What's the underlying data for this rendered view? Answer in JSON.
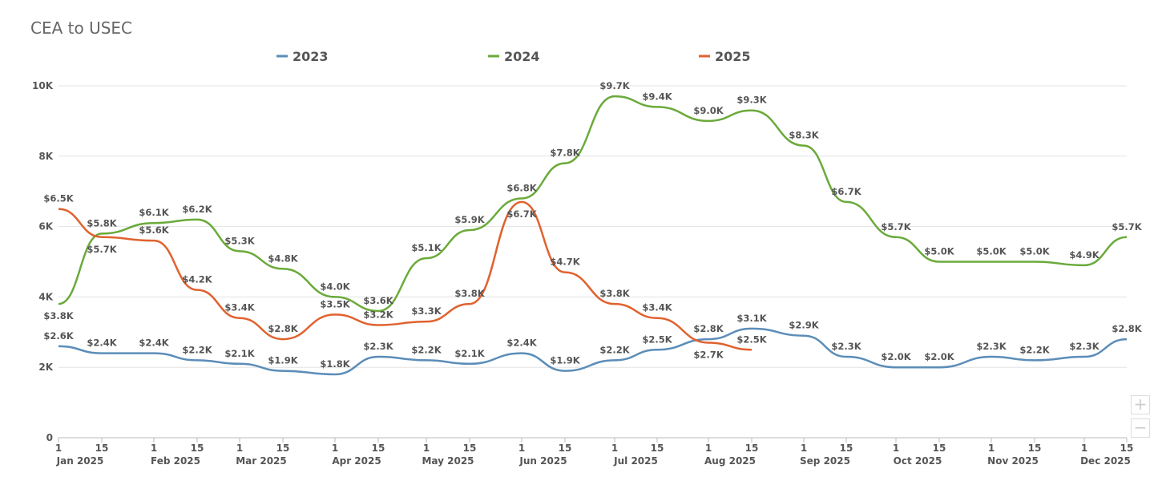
{
  "chart_data": {
    "type": "line",
    "title": "CEA to USEC",
    "x_dates": [
      "Jan 1",
      "Jan 15",
      "Feb 1",
      "Feb 15",
      "Mar 1",
      "Mar 15",
      "Apr 1",
      "Apr 15",
      "May 1",
      "May 15",
      "Jun 1",
      "Jun 15",
      "Jul 1",
      "Jul 15",
      "Aug 1",
      "Aug 15",
      "Sep 1",
      "Sep 15",
      "Oct 1",
      "Oct 15",
      "Nov 1",
      "Nov 15",
      "Dec 1",
      "Dec 15"
    ],
    "x_day_ticks": [
      "1",
      "15"
    ],
    "x_month_labels": [
      "Jan 2025",
      "Feb 2025",
      "Mar 2025",
      "Apr 2025",
      "May 2025",
      "Jun 2025",
      "Jul 2025",
      "Aug 2025",
      "Sep 2025",
      "Oct 2025",
      "Nov 2025",
      "Dec 2025"
    ],
    "y_ticks": [
      "0",
      "2K",
      "4K",
      "6K",
      "8K",
      "10K"
    ],
    "ylim": [
      0,
      10000
    ],
    "grid": true,
    "legend_position": "top",
    "value_unit": "K",
    "value_prefix": "$",
    "series": [
      {
        "name": "2023",
        "color": "#5b8db8",
        "values": [
          2.6,
          2.4,
          2.4,
          2.2,
          2.1,
          1.9,
          1.8,
          2.3,
          2.2,
          2.1,
          2.4,
          1.9,
          2.2,
          2.5,
          2.8,
          3.1,
          2.9,
          2.3,
          2.0,
          2.0,
          2.3,
          2.2,
          2.3,
          2.8
        ]
      },
      {
        "name": "2024",
        "color": "#6aaa3a",
        "values": [
          3.8,
          5.8,
          6.1,
          6.2,
          5.3,
          4.8,
          4.0,
          3.6,
          5.1,
          5.9,
          6.8,
          7.8,
          9.7,
          9.4,
          9.0,
          9.3,
          8.3,
          6.7,
          5.7,
          5.0,
          5.0,
          5.0,
          4.9,
          5.7
        ]
      },
      {
        "name": "2025",
        "color": "#e0622f",
        "values": [
          6.5,
          5.7,
          5.6,
          4.2,
          3.4,
          2.8,
          3.5,
          3.2,
          3.3,
          3.8,
          6.7,
          4.7,
          3.8,
          3.4,
          2.7,
          2.5
        ]
      }
    ]
  },
  "zoom": {
    "in_label": "+",
    "out_label": "−"
  }
}
